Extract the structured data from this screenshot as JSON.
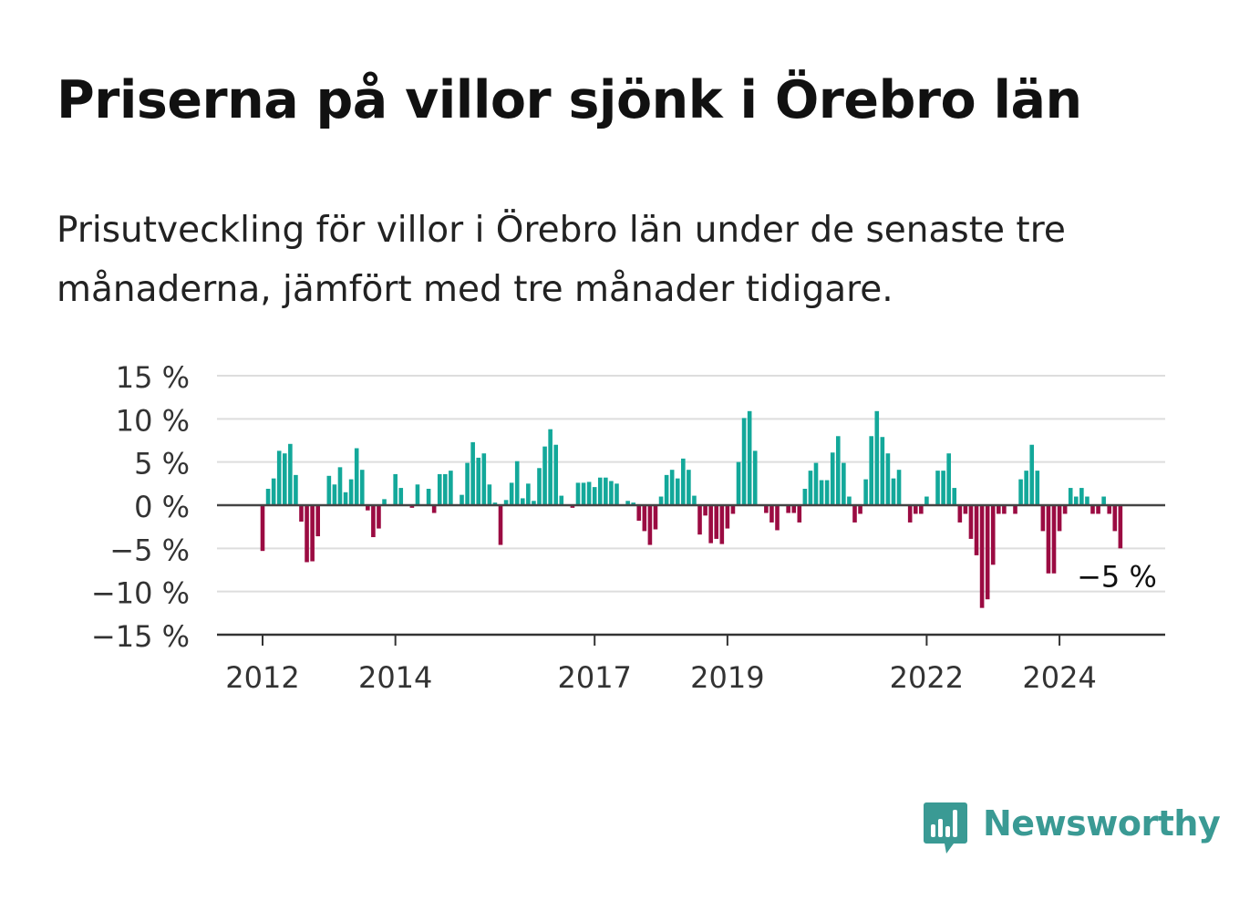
{
  "header": {
    "title": "Priserna på villor sjönk i Örebro län",
    "subtitle": "Prisutveckling för villor i Örebro län under de senaste tre månaderna, jämfört med tre månader tidigare."
  },
  "chart_data": {
    "type": "bar",
    "title": "Priserna på villor sjönk i Örebro län",
    "subtitle": "Prisutveckling för villor i Örebro län under de senaste tre månaderna, jämfört med tre månader tidigare.",
    "xlabel": "",
    "ylabel": "",
    "ylim": [
      -15,
      15
    ],
    "y_ticks": [
      15,
      10,
      5,
      0,
      -5,
      -10,
      -15
    ],
    "y_tick_labels": [
      "15 %",
      "10 %",
      "5 %",
      "0 %",
      "−5 %",
      "−10 %",
      "−15 %"
    ],
    "x_ticks": [
      2012,
      2014,
      2017,
      2019,
      2022,
      2024
    ],
    "x_tick_labels": [
      "2012",
      "2014",
      "2017",
      "2019",
      "2022",
      "2024"
    ],
    "grid": true,
    "positive_color": "#13a89a",
    "negative_color": "#9b0b42",
    "start": "2012-01",
    "frequency": "monthly",
    "values": [
      -5.3,
      1.9,
      3.1,
      6.3,
      6.0,
      7.1,
      3.5,
      -1.9,
      -6.6,
      -6.5,
      -3.6,
      0.0,
      3.4,
      2.4,
      4.4,
      1.5,
      3.0,
      6.6,
      4.1,
      -0.6,
      -3.7,
      -2.7,
      0.7,
      0.0,
      3.6,
      2.0,
      0.0,
      -0.3,
      2.4,
      0.0,
      1.9,
      -0.9,
      3.6,
      3.6,
      4.0,
      0.0,
      1.2,
      4.9,
      7.3,
      5.5,
      6.0,
      2.4,
      0.3,
      -4.6,
      0.6,
      2.6,
      5.1,
      0.8,
      2.5,
      0.5,
      4.3,
      6.8,
      8.8,
      7.0,
      1.1,
      0.0,
      -0.3,
      2.6,
      2.6,
      2.7,
      2.1,
      3.2,
      3.2,
      2.8,
      2.5,
      0.0,
      0.5,
      0.3,
      -1.8,
      -3.0,
      -4.6,
      -2.8,
      1.0,
      3.5,
      4.1,
      3.1,
      5.4,
      4.1,
      1.1,
      -3.4,
      -1.2,
      -4.4,
      -3.9,
      -4.5,
      -2.7,
      -1.0,
      5.0,
      10.1,
      10.9,
      6.3,
      0.0,
      -0.9,
      -2.0,
      -2.9,
      0.0,
      -0.9,
      -0.9,
      -2.0,
      1.9,
      4.0,
      4.9,
      2.9,
      2.9,
      6.1,
      8.0,
      4.9,
      1.0,
      -2.0,
      -1.0,
      3.0,
      8.0,
      10.9,
      7.9,
      6.0,
      3.1,
      4.1,
      0.0,
      -2.0,
      -1.0,
      -1.0,
      1.0,
      0.0,
      4.0,
      4.0,
      6.0,
      2.0,
      -2.0,
      -1.0,
      -3.9,
      -5.8,
      -11.9,
      -10.9,
      -6.9,
      -1.0,
      -1.0,
      0.0,
      -1.0,
      3.0,
      4.0,
      7.0,
      4.0,
      -3.0,
      -7.9,
      -7.9,
      -3.0,
      -1.0,
      2.0,
      1.0,
      2.0,
      1.0,
      -1.0,
      -1.0,
      1.0,
      -1.0,
      -3.0,
      -5.0
    ],
    "annotation": {
      "text": "−5 %",
      "target": "last"
    }
  },
  "brand": {
    "name": "Newsworthy",
    "logo_icon": "newsworthy-chat-bars-icon",
    "color": "#3a9a94"
  }
}
